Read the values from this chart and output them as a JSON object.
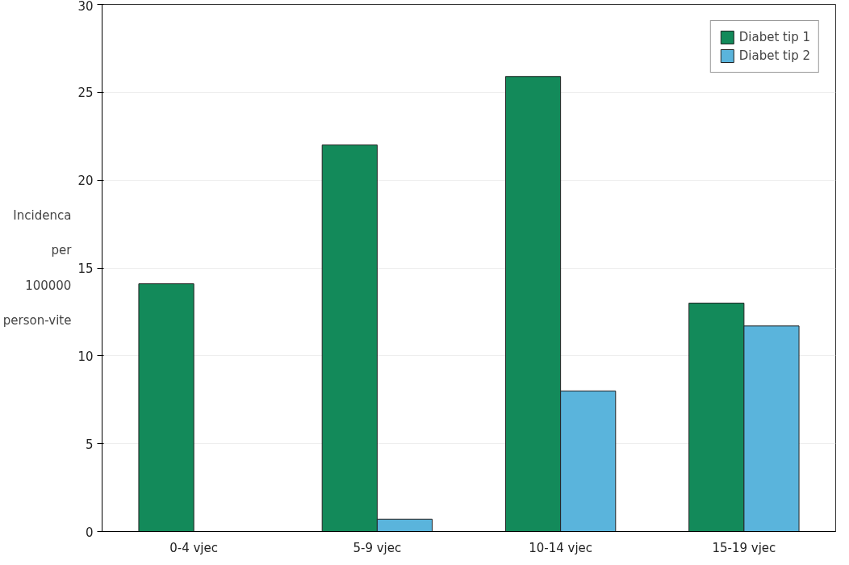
{
  "chart_data": {
    "type": "bar",
    "ylabel": "Incidenca per 100000 person-vite",
    "categories": [
      "0-4 vjec",
      "5-9 vjec",
      "10-14 vjec",
      "15-19 vjec"
    ],
    "series": [
      {
        "name": "Diabet tip 1",
        "color": "#138a5a",
        "values": [
          14.1,
          22.0,
          25.9,
          13.0
        ]
      },
      {
        "name": "Diabet tip 2",
        "color": "#5ab4dc",
        "values": [
          null,
          0.7,
          8.0,
          11.7
        ]
      }
    ],
    "ylim": [
      0,
      30
    ],
    "yticks": [
      0,
      5,
      10,
      15,
      20,
      25,
      30
    ],
    "grid": "y",
    "legend": "top right"
  }
}
